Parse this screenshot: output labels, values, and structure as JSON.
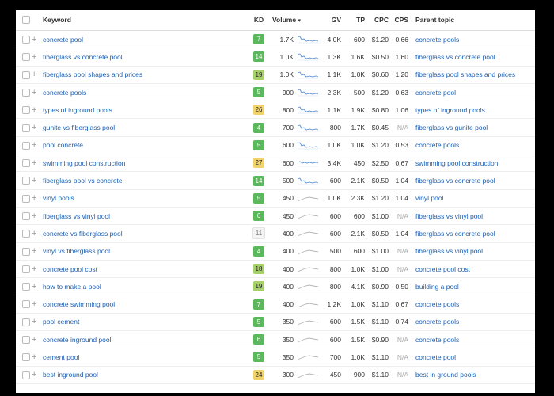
{
  "header": {
    "keyword": "Keyword",
    "kd": "KD",
    "volume": "Volume",
    "sort_indicator": "▾",
    "gv": "GV",
    "tp": "TP",
    "cpc": "CPC",
    "cps": "CPS",
    "parent_topic": "Parent topic"
  },
  "colors": {
    "link": "#1a5fb4",
    "kd_green": "#5cb85c",
    "kd_lime": "#a6d06a",
    "kd_yellow": "#f1d36b",
    "spark_line": "#5b8fd6"
  },
  "rows": [
    {
      "keyword": "concrete pool",
      "kd": "7",
      "kd_class": "green",
      "volume": "1.7K",
      "trend": "down",
      "gv": "4.0K",
      "tp": "600",
      "cpc": "$1.20",
      "cps": "0.66",
      "parent": "concrete pools"
    },
    {
      "keyword": "fiberglass vs concrete pool",
      "kd": "14",
      "kd_class": "green",
      "volume": "1.0K",
      "trend": "down",
      "gv": "1.3K",
      "tp": "1.6K",
      "cpc": "$0.50",
      "cps": "1.60",
      "parent": "fiberglass vs concrete pool"
    },
    {
      "keyword": "fiberglass pool shapes and prices",
      "kd": "19",
      "kd_class": "lime",
      "volume": "1.0K",
      "trend": "down",
      "gv": "1.1K",
      "tp": "1.0K",
      "cpc": "$0.60",
      "cps": "1.20",
      "parent": "fiberglass pool shapes and prices"
    },
    {
      "keyword": "concrete pools",
      "kd": "5",
      "kd_class": "green",
      "volume": "900",
      "trend": "down",
      "gv": "2.3K",
      "tp": "500",
      "cpc": "$1.20",
      "cps": "0.63",
      "parent": "concrete pool"
    },
    {
      "keyword": "types of inground pools",
      "kd": "26",
      "kd_class": "yellow",
      "volume": "800",
      "trend": "down",
      "gv": "1.1K",
      "tp": "1.9K",
      "cpc": "$0.80",
      "cps": "1.06",
      "parent": "types of inground pools"
    },
    {
      "keyword": "gunite vs fiberglass pool",
      "kd": "4",
      "kd_class": "green",
      "volume": "700",
      "trend": "down",
      "gv": "800",
      "tp": "1.7K",
      "cpc": "$0.45",
      "cps": "N/A",
      "parent": "fiberglass vs gunite pool"
    },
    {
      "keyword": "pool concrete",
      "kd": "5",
      "kd_class": "green",
      "volume": "600",
      "trend": "down",
      "gv": "1.0K",
      "tp": "1.0K",
      "cpc": "$1.20",
      "cps": "0.53",
      "parent": "concrete pools"
    },
    {
      "keyword": "swimming pool construction",
      "kd": "27",
      "kd_class": "yellow",
      "volume": "600",
      "trend": "flat",
      "gv": "3.4K",
      "tp": "450",
      "cpc": "$2.50",
      "cps": "0.67",
      "parent": "swimming pool construction"
    },
    {
      "keyword": "fiberglass pool vs concrete",
      "kd": "14",
      "kd_class": "green",
      "volume": "500",
      "trend": "down",
      "gv": "600",
      "tp": "2.1K",
      "cpc": "$0.50",
      "cps": "1.04",
      "parent": "fiberglass vs concrete pool"
    },
    {
      "keyword": "vinyl pools",
      "kd": "5",
      "kd_class": "green",
      "volume": "450",
      "trend": "grey",
      "gv": "1.0K",
      "tp": "2.3K",
      "cpc": "$1.20",
      "cps": "1.04",
      "parent": "vinyl pool"
    },
    {
      "keyword": "fiberglass vs vinyl pool",
      "kd": "6",
      "kd_class": "green",
      "volume": "450",
      "trend": "grey",
      "gv": "600",
      "tp": "600",
      "cpc": "$1.00",
      "cps": "N/A",
      "parent": "fiberglass vs vinyl pool"
    },
    {
      "keyword": "concrete vs fiberglass pool",
      "kd": "11",
      "kd_class": "light",
      "volume": "400",
      "trend": "grey",
      "gv": "600",
      "tp": "2.1K",
      "cpc": "$0.50",
      "cps": "1.04",
      "parent": "fiberglass vs concrete pool"
    },
    {
      "keyword": "vinyl vs fiberglass pool",
      "kd": "4",
      "kd_class": "green",
      "volume": "400",
      "trend": "grey",
      "gv": "500",
      "tp": "600",
      "cpc": "$1.00",
      "cps": "N/A",
      "parent": "fiberglass vs vinyl pool"
    },
    {
      "keyword": "concrete pool cost",
      "kd": "18",
      "kd_class": "lime",
      "volume": "400",
      "trend": "grey",
      "gv": "800",
      "tp": "1.0K",
      "cpc": "$1.00",
      "cps": "N/A",
      "parent": "concrete pool cost"
    },
    {
      "keyword": "how to make a pool",
      "kd": "19",
      "kd_class": "lime",
      "volume": "400",
      "trend": "grey",
      "gv": "800",
      "tp": "4.1K",
      "cpc": "$0.90",
      "cps": "0.50",
      "parent": "building a pool"
    },
    {
      "keyword": "concrete swimming pool",
      "kd": "7",
      "kd_class": "green",
      "volume": "400",
      "trend": "grey",
      "gv": "1.2K",
      "tp": "1.0K",
      "cpc": "$1.10",
      "cps": "0.67",
      "parent": "concrete pools"
    },
    {
      "keyword": "pool cement",
      "kd": "5",
      "kd_class": "green",
      "volume": "350",
      "trend": "grey",
      "gv": "600",
      "tp": "1.5K",
      "cpc": "$1.10",
      "cps": "0.74",
      "parent": "concrete pools"
    },
    {
      "keyword": "concrete inground pool",
      "kd": "6",
      "kd_class": "green",
      "volume": "350",
      "trend": "grey",
      "gv": "600",
      "tp": "1.5K",
      "cpc": "$0.90",
      "cps": "N/A",
      "parent": "concrete pools"
    },
    {
      "keyword": "cement pool",
      "kd": "5",
      "kd_class": "green",
      "volume": "350",
      "trend": "grey",
      "gv": "700",
      "tp": "1.0K",
      "cpc": "$1.10",
      "cps": "N/A",
      "parent": "concrete pool"
    },
    {
      "keyword": "best inground pool",
      "kd": "24",
      "kd_class": "yellow",
      "volume": "300",
      "trend": "grey",
      "gv": "450",
      "tp": "900",
      "cpc": "$1.10",
      "cps": "N/A",
      "parent": "best in ground pools"
    }
  ]
}
